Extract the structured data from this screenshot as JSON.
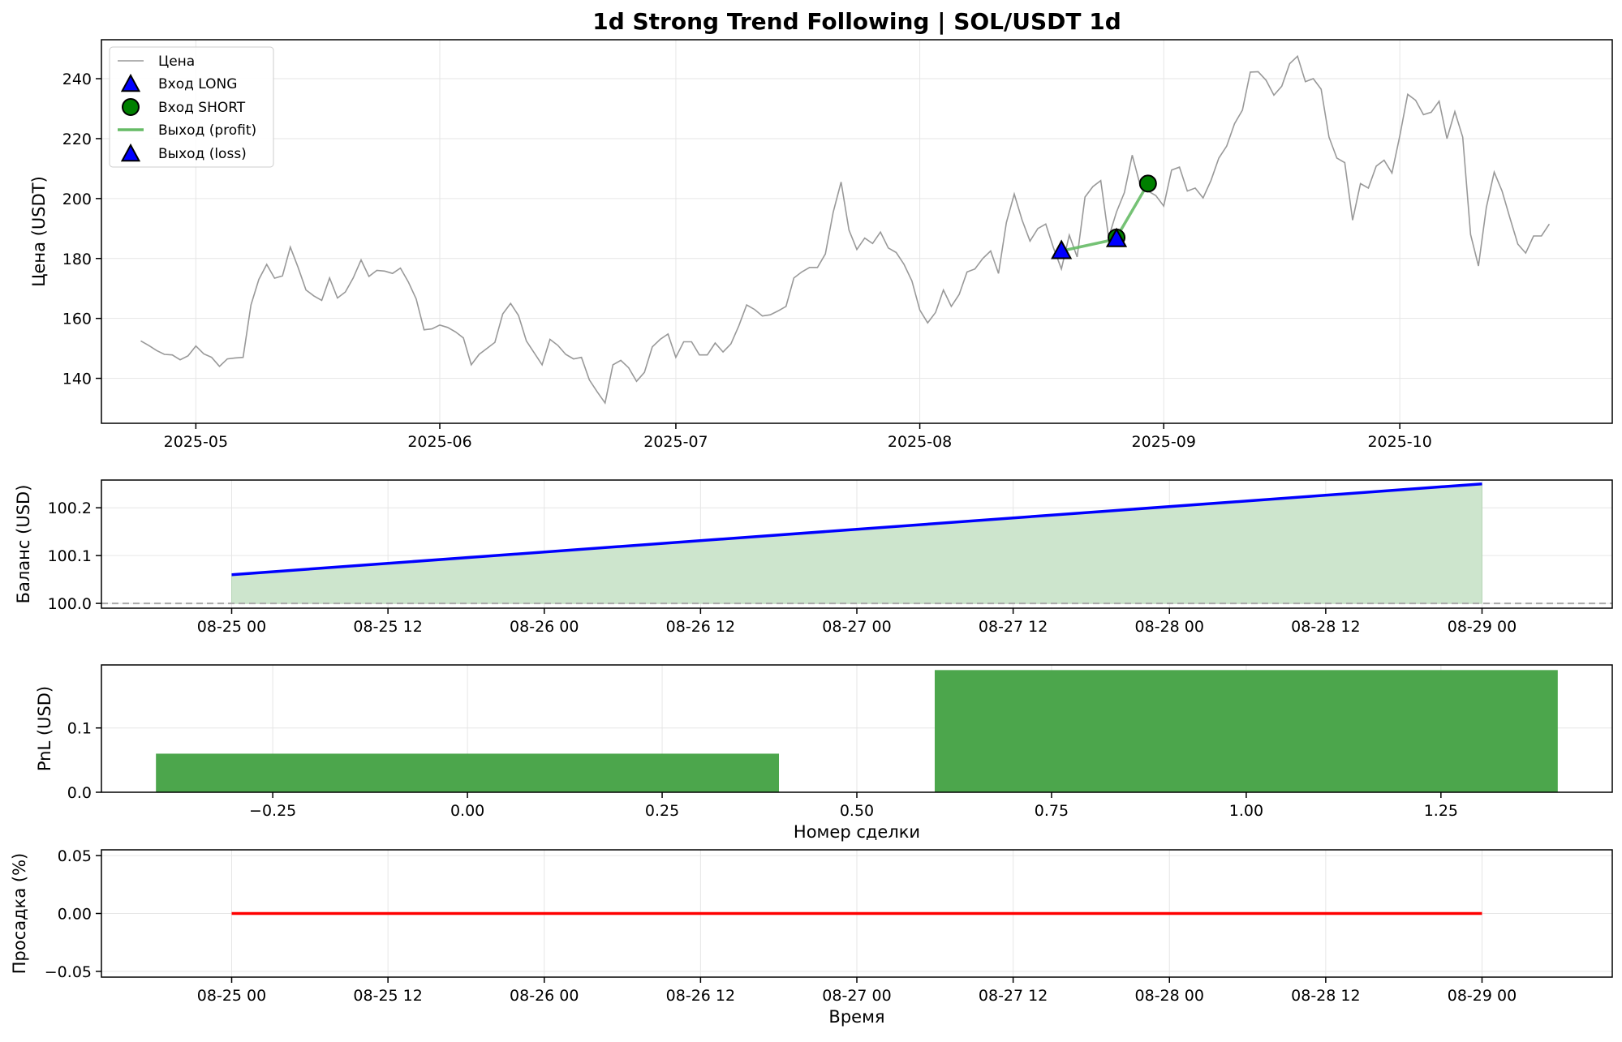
{
  "figure": {
    "title": "1d Strong Trend Following | SOL/USDT 1d"
  },
  "colors": {
    "price": "#999999",
    "long": "#0000ff",
    "short": "#008000",
    "exit_profit": "#66bb66",
    "balance": "#0000ff",
    "balance_fill": "#cde5cd",
    "pnl_bar": "#4ca64c",
    "drawdown": "#ff0000",
    "grid": "#e6e6e6",
    "baseline": "#aaaaaa"
  },
  "chart_data": [
    {
      "id": "price",
      "type": "line",
      "ylabel": "Цена (USDT)",
      "xlabel": "",
      "xlim": [
        "2025-04-19",
        "2025-10-28"
      ],
      "ylim": [
        125,
        253
      ],
      "grid": true,
      "legend_position": "top-left",
      "x_ticks": [
        "2025-05-01",
        "2025-06-01",
        "2025-07-01",
        "2025-08-01",
        "2025-09-01",
        "2025-10-01"
      ],
      "x_tick_labels": [
        "2025-05",
        "2025-06",
        "2025-07",
        "2025-08",
        "2025-09",
        "2025-10"
      ],
      "y_ticks": [
        140,
        160,
        180,
        200,
        220,
        240
      ],
      "legend": [
        "Цена",
        "Вход LONG",
        "Вход SHORT",
        "Выход (profit)",
        "Выход (loss)"
      ],
      "series": [
        {
          "name": "Цена",
          "start_date": "2025-04-24",
          "step": "1d",
          "values": [
            152.5,
            151,
            149.3,
            148,
            147.8,
            146.2,
            147.5,
            150.8,
            148.2,
            147,
            144,
            146.5,
            146.8,
            147,
            164.5,
            173,
            178,
            173.4,
            174.2,
            183.8,
            177,
            169.5,
            167.5,
            166,
            173.5,
            166.8,
            168.8,
            173.5,
            179.5,
            174,
            176,
            175.8,
            175,
            176.8,
            172.2,
            166.5,
            156.2,
            156.5,
            157.8,
            157,
            155.5,
            153.5,
            144.5,
            148,
            150,
            152,
            161.5,
            165,
            161,
            152.5,
            148.5,
            144.5,
            153,
            151,
            148,
            146.5,
            147,
            139.5,
            135.5,
            131.8,
            144.5,
            146,
            143.5,
            139,
            142,
            150.5,
            153,
            154.8,
            147,
            152.2,
            152.2,
            147.8,
            147.8,
            151.8,
            148.8,
            151.5,
            157.5,
            164.5,
            163,
            160.8,
            161.2,
            162.5,
            164,
            173.5,
            175.5,
            177,
            177,
            181.5,
            195.5,
            205.5,
            189.5,
            183,
            186.8,
            185,
            188.8,
            183.5,
            182,
            178,
            172.5,
            162.8,
            158.5,
            162,
            169.5,
            164,
            168,
            175.5,
            176.5,
            180,
            182.5,
            175,
            192,
            201.5,
            192.8,
            185.8,
            190,
            191.5,
            183.5,
            176.5,
            187.8,
            180.5,
            200.5,
            204,
            206,
            187,
            195.5,
            202,
            214.5,
            204.5,
            202.5,
            201,
            197.5,
            209.5,
            210.5,
            202.5,
            203.5,
            200.2,
            206,
            213.5,
            217.5,
            225,
            229.5,
            242.2,
            242.3,
            239.5,
            234.5,
            237.5,
            245,
            247.5,
            239,
            240,
            236.5,
            220.5,
            213.5,
            212,
            192.8,
            205,
            203.5,
            210.8,
            212.8,
            208.5,
            221,
            234.8,
            232.8,
            228,
            228.8,
            232.5,
            220,
            229,
            220.5,
            188,
            177.5,
            197,
            208.8,
            202.5,
            193.5,
            184.8,
            181.8,
            187.5,
            187.5,
            191.5
          ]
        }
      ],
      "markers": [
        {
          "type": "Вход LONG",
          "x": "2025-08-19",
          "y": 182.5
        },
        {
          "type": "Вход SHORT",
          "x": "2025-08-26",
          "y": 187
        },
        {
          "type": "Вход SHORT",
          "x": "2025-08-30",
          "y": 205
        },
        {
          "type": "Выход (loss)",
          "x": "2025-08-26",
          "y": 186.5
        }
      ],
      "trade_lines": [
        {
          "type": "Выход (profit)",
          "x": [
            "2025-08-19",
            "2025-08-26"
          ],
          "y": [
            182.5,
            186.5
          ]
        },
        {
          "type": "Выход (profit)",
          "x": [
            "2025-08-26",
            "2025-08-30"
          ],
          "y": [
            187,
            205
          ]
        }
      ]
    },
    {
      "id": "balance",
      "type": "area",
      "ylabel": "Баланс (USD)",
      "xlabel": "",
      "xlim": [
        "2025-08-24T14:00",
        "2025-08-29T10:00"
      ],
      "ylim": [
        99.99,
        100.258
      ],
      "grid": true,
      "x_ticks": [
        "2025-08-25T00:00",
        "2025-08-25T12:00",
        "2025-08-26T00:00",
        "2025-08-26T12:00",
        "2025-08-27T00:00",
        "2025-08-27T12:00",
        "2025-08-28T00:00",
        "2025-08-28T12:00",
        "2025-08-29T00:00"
      ],
      "x_tick_labels": [
        "08-25 00",
        "08-25 12",
        "08-26 00",
        "08-26 12",
        "08-27 00",
        "08-27 12",
        "08-28 00",
        "08-28 12",
        "08-29 00"
      ],
      "y_ticks": [
        100.0,
        100.1,
        100.2
      ],
      "y_tick_labels": [
        "100.0",
        "100.1",
        "100.2"
      ],
      "baseline": 100.0,
      "x": [
        "2025-08-25T00:00",
        "2025-08-29T00:00"
      ],
      "y": [
        100.06,
        100.25
      ]
    },
    {
      "id": "pnl",
      "type": "bar",
      "ylabel": "PnL (USD)",
      "xlabel": "Номер сделки",
      "xlim": [
        -0.47,
        1.47
      ],
      "ylim": [
        0,
        0.198
      ],
      "grid": true,
      "x_ticks": [
        -0.25,
        0.0,
        0.25,
        0.5,
        0.75,
        1.0,
        1.25
      ],
      "x_tick_labels": [
        "−0.25",
        "0.00",
        "0.25",
        "0.50",
        "0.75",
        "1.00",
        "1.25"
      ],
      "y_ticks": [
        0.0,
        0.1
      ],
      "y_tick_labels": [
        "0.0",
        "0.1"
      ],
      "categories": [
        0,
        1
      ],
      "values": [
        0.06,
        0.19
      ],
      "bar_width": 0.8
    },
    {
      "id": "drawdown",
      "type": "line",
      "ylabel": "Просадка (%)",
      "xlabel": "Время",
      "xlim": [
        "2025-08-24T14:00",
        "2025-08-29T10:00"
      ],
      "ylim": [
        -0.055,
        0.055
      ],
      "grid": true,
      "x_ticks": [
        "2025-08-25T00:00",
        "2025-08-25T12:00",
        "2025-08-26T00:00",
        "2025-08-26T12:00",
        "2025-08-27T00:00",
        "2025-08-27T12:00",
        "2025-08-28T00:00",
        "2025-08-28T12:00",
        "2025-08-29T00:00"
      ],
      "x_tick_labels": [
        "08-25 00",
        "08-25 12",
        "08-26 00",
        "08-26 12",
        "08-27 00",
        "08-27 12",
        "08-28 00",
        "08-28 12",
        "08-29 00"
      ],
      "y_ticks": [
        -0.05,
        0.0,
        0.05
      ],
      "y_tick_labels": [
        "−0.05",
        "0.00",
        "0.05"
      ],
      "x": [
        "2025-08-25T00:00",
        "2025-08-29T00:00"
      ],
      "y": [
        0.0,
        0.0
      ]
    }
  ]
}
